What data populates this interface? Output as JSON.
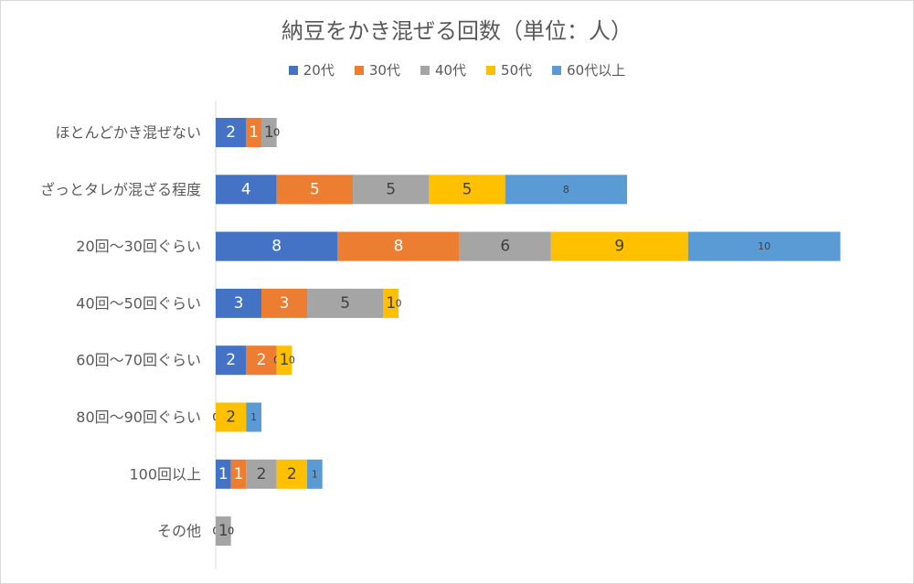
{
  "chart_data": {
    "type": "bar",
    "orientation": "horizontal",
    "stacked": true,
    "title": "納豆をかき混ぜる回数（単位：人）",
    "legend_position": "top",
    "grid": false,
    "categories": [
      "ほとんどかき混ぜない",
      "ざっとタレが混ざる程度",
      "20回〜30回ぐらい",
      "40回〜50回ぐらい",
      "60回〜70回ぐらい",
      "80回〜90回ぐらい",
      "100回以上",
      "その他"
    ],
    "series": [
      {
        "name": "20代",
        "color": "#4472c4",
        "values": [
          2,
          4,
          8,
          3,
          2,
          0,
          1,
          0
        ]
      },
      {
        "name": "30代",
        "color": "#ed7d31",
        "values": [
          1,
          5,
          8,
          3,
          2,
          0,
          1,
          0
        ]
      },
      {
        "name": "40代",
        "color": "#a5a5a5",
        "values": [
          1,
          5,
          6,
          5,
          0,
          0,
          2,
          1
        ]
      },
      {
        "name": "50代",
        "color": "#ffc000",
        "values": [
          0,
          5,
          9,
          1,
          1,
          2,
          2,
          0
        ]
      },
      {
        "name": "60代以上",
        "color": "#5b9bd5",
        "values": [
          0,
          8,
          10,
          0,
          0,
          1,
          1,
          0
        ]
      }
    ]
  }
}
